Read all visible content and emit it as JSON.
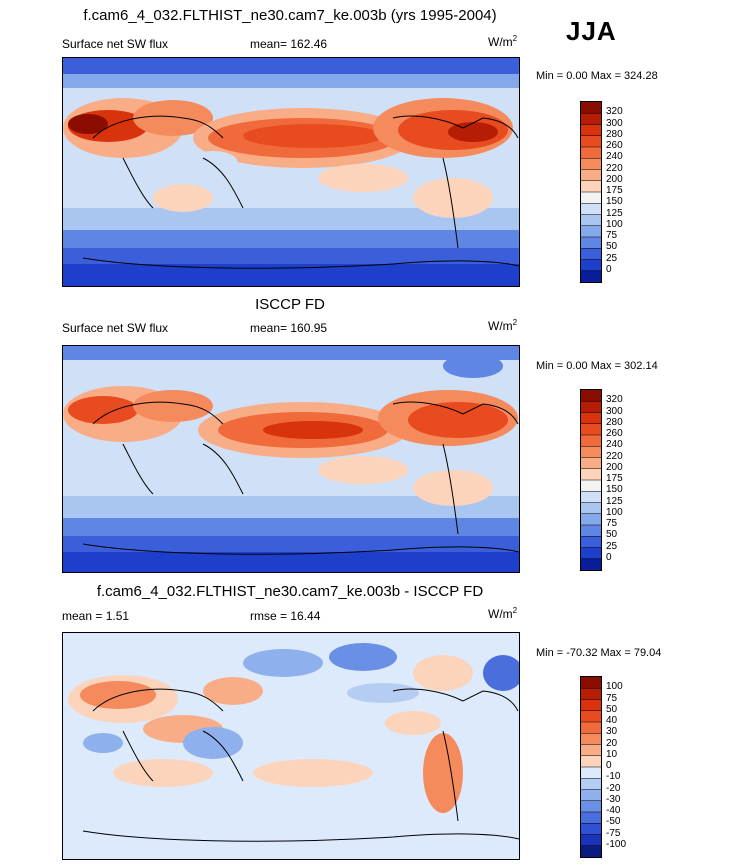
{
  "season": "JJA",
  "panels": [
    {
      "title": "f.cam6_4_032.FLTHIST_ne30.cam7_ke.003b (yrs 1995-2004)",
      "left_label": "Surface net SW flux",
      "center_label": "mean= 162.46",
      "units": "W/m",
      "units_sup": "2",
      "minmax": "Min =    0.00 Max = 324.28",
      "colorbar": {
        "ticks": [
          "320",
          "300",
          "280",
          "260",
          "240",
          "220",
          "200",
          "175",
          "150",
          "125",
          "100",
          "75",
          "50",
          "25",
          "0"
        ],
        "colors": [
          "#8b0d00",
          "#b71d05",
          "#d8330d",
          "#e74b1f",
          "#f06a3b",
          "#f58a5d",
          "#f9ad87",
          "#fcd4bc",
          "#f3f3f3",
          "#cfe0f7",
          "#a9c6f0",
          "#84a8ea",
          "#5f86e2",
          "#3b5fdb",
          "#1d3fcc",
          "#0a1c99"
        ]
      }
    },
    {
      "title": "ISCCP FD",
      "left_label": "Surface net SW flux",
      "center_label": "mean= 160.95",
      "units": "W/m",
      "units_sup": "2",
      "minmax": "Min =    0.00 Max = 302.14",
      "colorbar": {
        "ticks": [
          "320",
          "300",
          "280",
          "260",
          "240",
          "220",
          "200",
          "175",
          "150",
          "125",
          "100",
          "75",
          "50",
          "25",
          "0"
        ],
        "colors": [
          "#8b0d00",
          "#b71d05",
          "#d8330d",
          "#e74b1f",
          "#f06a3b",
          "#f58a5d",
          "#f9ad87",
          "#fcd4bc",
          "#f3f3f3",
          "#cfe0f7",
          "#a9c6f0",
          "#84a8ea",
          "#5f86e2",
          "#3b5fdb",
          "#1d3fcc",
          "#0a1c99"
        ]
      }
    },
    {
      "title": "f.cam6_4_032.FLTHIST_ne30.cam7_ke.003b - ISCCP FD",
      "left_label": "mean =   1.51",
      "center_label": "rmse =  16.44",
      "units": "W/m",
      "units_sup": "2",
      "minmax": "Min = -70.32 Max =  79.04",
      "colorbar": {
        "ticks": [
          "100",
          "75",
          "50",
          "40",
          "30",
          "20",
          "10",
          "0",
          "-10",
          "-20",
          "-30",
          "-40",
          "-50",
          "-75",
          "-100"
        ],
        "colors": [
          "#8b0d00",
          "#b71d05",
          "#d8330d",
          "#e74b1f",
          "#f06a3b",
          "#f58a5d",
          "#f9ad87",
          "#fcd4bc",
          "#ddeafb",
          "#b6cdf3",
          "#8eb0ec",
          "#6a90e5",
          "#4a6fdd",
          "#2f4fd4",
          "#1a33b8",
          "#0a1c80"
        ]
      }
    }
  ]
}
